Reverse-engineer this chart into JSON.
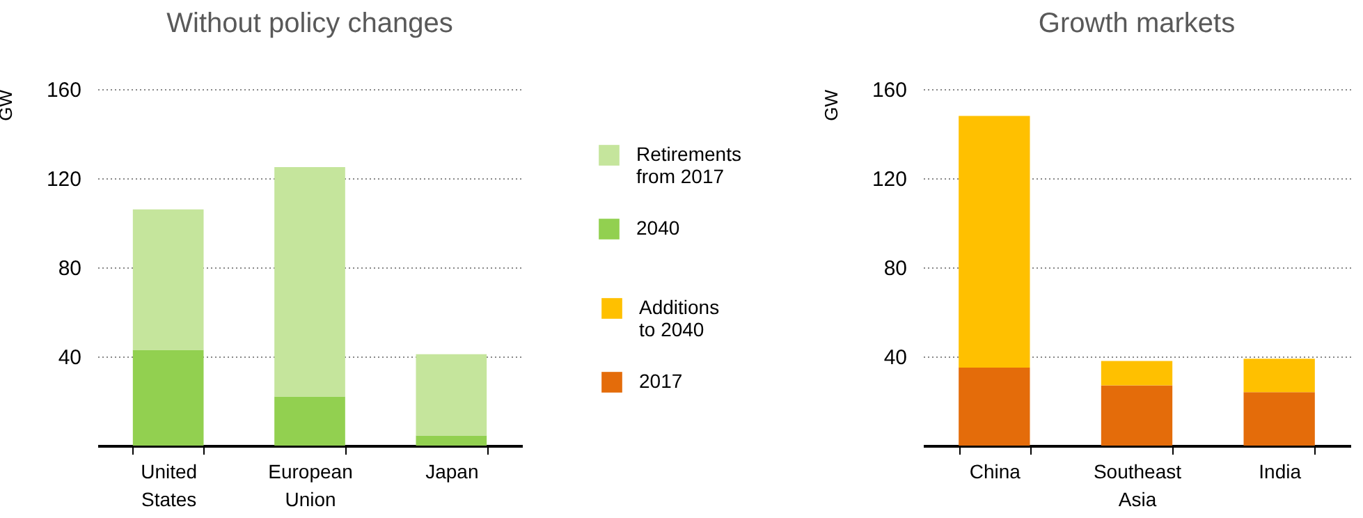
{
  "chart_data": [
    {
      "type": "bar",
      "title": "Without policy changes",
      "ylabel": "GW",
      "categories": [
        "United States",
        "European Union",
        "Japan"
      ],
      "stacked": true,
      "ylim": [
        0,
        160
      ],
      "yticks": [
        40,
        80,
        120,
        160
      ],
      "grid": "y",
      "legend": "right",
      "series": [
        {
          "name": "2040",
          "color": "#92d050",
          "values": [
            43,
            22,
            4.5
          ]
        },
        {
          "name": "Retirements from 2017",
          "color": "#c5e59c",
          "values": [
            63,
            103,
            36.5
          ]
        }
      ]
    },
    {
      "type": "bar",
      "title": "Growth markets",
      "ylabel": "GW",
      "categories": [
        "China",
        "Southeast Asia",
        "India"
      ],
      "stacked": true,
      "ylim": [
        0,
        160
      ],
      "yticks": [
        40,
        80,
        120,
        160
      ],
      "grid": "y",
      "legend": "left",
      "series": [
        {
          "name": "2017",
          "color": "#e46c0a",
          "values": [
            35,
            27,
            24
          ]
        },
        {
          "name": "Additions to 2040",
          "color": "#ffc000",
          "values": [
            113,
            11,
            15
          ]
        }
      ]
    }
  ]
}
